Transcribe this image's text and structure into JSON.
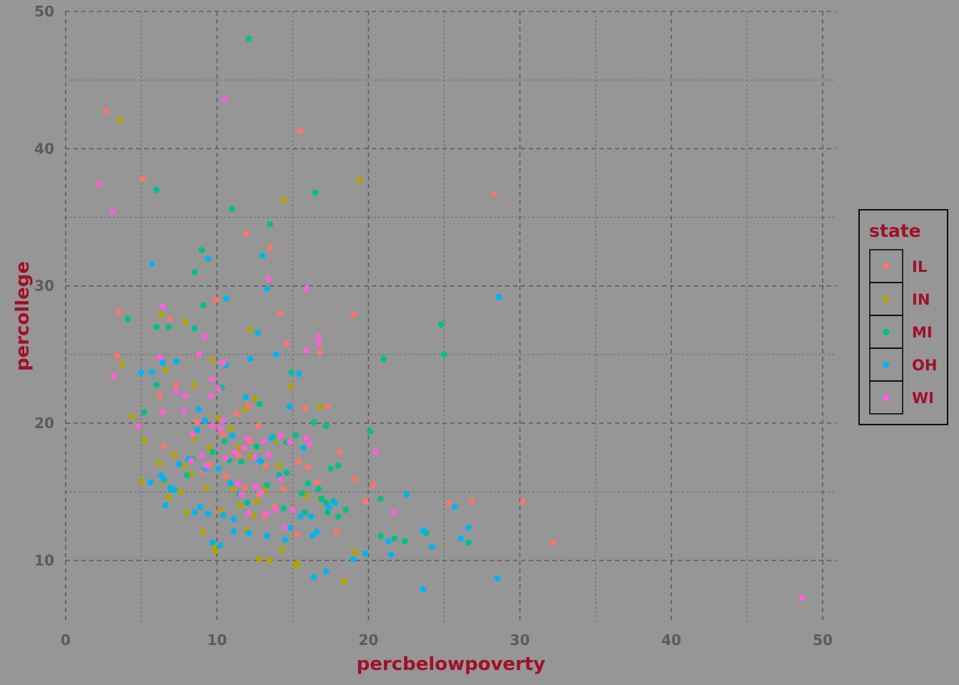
{
  "chart_data": {
    "type": "scatter",
    "xlabel": "percbelowpoverty",
    "ylabel": "percollege",
    "xlim": [
      0,
      50
    ],
    "ylim": [
      5.5,
      50
    ],
    "x_ticks": [
      0,
      10,
      20,
      30,
      40,
      50
    ],
    "y_ticks": [
      10,
      20,
      30,
      40,
      50
    ],
    "grid": true,
    "legend": {
      "title": "state",
      "position": "right"
    },
    "series": [
      {
        "name": "IL",
        "color": "#F8766D",
        "points": [
          [
            2.7,
            42.7
          ],
          [
            15.5,
            41.3
          ],
          [
            5.1,
            37.8
          ],
          [
            28.3,
            36.7
          ],
          [
            11.9,
            33.8
          ],
          [
            13.5,
            32.8
          ],
          [
            9.9,
            29.0
          ],
          [
            3.5,
            28.1
          ],
          [
            14.2,
            28.0
          ],
          [
            19.0,
            27.9
          ],
          [
            6.9,
            27.6
          ],
          [
            14.6,
            25.8
          ],
          [
            16.8,
            25.2
          ],
          [
            3.4,
            24.9
          ],
          [
            7.3,
            22.8
          ],
          [
            17.3,
            21.2
          ],
          [
            15.8,
            21.1
          ],
          [
            6.5,
            18.3
          ],
          [
            18.1,
            17.9
          ],
          [
            9.5,
            17.0
          ],
          [
            10.6,
            16.1
          ],
          [
            11.8,
            15.3
          ],
          [
            12.8,
            14.8
          ],
          [
            20.3,
            15.5
          ],
          [
            19.8,
            14.3
          ],
          [
            20.8,
            14.6
          ],
          [
            25.3,
            14.2
          ],
          [
            26.8,
            14.3
          ],
          [
            30.2,
            14.3
          ],
          [
            15.3,
            11.9
          ],
          [
            17.9,
            12.1
          ],
          [
            32.2,
            11.3
          ],
          [
            12.2,
            18.7
          ],
          [
            13.2,
            16.9
          ],
          [
            8.7,
            20.1
          ],
          [
            11.3,
            20.7
          ],
          [
            12.7,
            19.8
          ],
          [
            16.0,
            16.8
          ],
          [
            14.4,
            15.2
          ],
          [
            10.2,
            13.6
          ],
          [
            13.8,
            13.9
          ],
          [
            19.1,
            15.9
          ],
          [
            6.2,
            22.0
          ],
          [
            11.5,
            17.6
          ],
          [
            9.1,
            16.5
          ],
          [
            15.4,
            17.2
          ],
          [
            16.6,
            15.7
          ],
          [
            13.1,
            13.2
          ],
          [
            12.1,
            21.3
          ],
          [
            10.4,
            19.2
          ]
        ]
      },
      {
        "name": "IN",
        "color": "#B1A300",
        "points": [
          [
            3.6,
            42.1
          ],
          [
            19.4,
            37.7
          ],
          [
            14.4,
            36.3
          ],
          [
            6.3,
            27.9
          ],
          [
            7.9,
            27.4
          ],
          [
            12.2,
            26.8
          ],
          [
            9.7,
            24.6
          ],
          [
            6.6,
            23.9
          ],
          [
            3.7,
            24.3
          ],
          [
            4.4,
            20.5
          ],
          [
            8.5,
            22.8
          ],
          [
            12.5,
            21.8
          ],
          [
            16.8,
            21.2
          ],
          [
            14.9,
            22.7
          ],
          [
            5.2,
            18.7
          ],
          [
            6.2,
            17.1
          ],
          [
            5.0,
            15.8
          ],
          [
            6.5,
            15.7
          ],
          [
            7.8,
            16.9
          ],
          [
            8.3,
            16.3
          ],
          [
            6.8,
            14.6
          ],
          [
            8.0,
            13.5
          ],
          [
            9.1,
            12.1
          ],
          [
            9.8,
            11.1
          ],
          [
            9.9,
            10.7
          ],
          [
            10.3,
            13.6
          ],
          [
            11.5,
            14.0
          ],
          [
            12.4,
            13.3
          ],
          [
            13.5,
            10.0
          ],
          [
            12.8,
            10.1
          ],
          [
            14.3,
            10.8
          ],
          [
            15.2,
            9.6
          ],
          [
            15.3,
            9.8
          ],
          [
            18.4,
            8.5
          ],
          [
            19.1,
            10.6
          ],
          [
            13.2,
            15.2
          ],
          [
            14.1,
            16.9
          ],
          [
            15.9,
            14.7
          ],
          [
            16.8,
            14.5
          ],
          [
            10.9,
            19.6
          ],
          [
            11.8,
            21.0
          ],
          [
            9.5,
            18.2
          ],
          [
            7.6,
            15.0
          ],
          [
            11.0,
            15.2
          ],
          [
            12.2,
            17.6
          ],
          [
            13.8,
            18.8
          ],
          [
            8.5,
            18.9
          ],
          [
            10.1,
            20.4
          ],
          [
            12.6,
            14.3
          ],
          [
            9.3,
            15.3
          ],
          [
            11.4,
            18.2
          ],
          [
            12.0,
            12.2
          ],
          [
            7.2,
            17.7
          ]
        ]
      },
      {
        "name": "MI",
        "color": "#00C08B",
        "points": [
          [
            12.1,
            48.0
          ],
          [
            6.0,
            37.0
          ],
          [
            16.5,
            36.8
          ],
          [
            11.0,
            35.6
          ],
          [
            13.5,
            34.5
          ],
          [
            9.0,
            32.6
          ],
          [
            8.5,
            31.0
          ],
          [
            9.1,
            28.6
          ],
          [
            4.1,
            27.6
          ],
          [
            6.0,
            27.0
          ],
          [
            6.8,
            27.0
          ],
          [
            8.5,
            26.9
          ],
          [
            24.8,
            27.2
          ],
          [
            25.0,
            25.0
          ],
          [
            21.0,
            24.7
          ],
          [
            6.0,
            22.8
          ],
          [
            10.3,
            22.6
          ],
          [
            14.9,
            23.7
          ],
          [
            5.2,
            20.8
          ],
          [
            20.1,
            19.4
          ],
          [
            12.8,
            21.4
          ],
          [
            17.2,
            19.8
          ],
          [
            16.4,
            20.1
          ],
          [
            13.7,
            19.0
          ],
          [
            14.6,
            18.6
          ],
          [
            15.2,
            19.1
          ],
          [
            11.6,
            17.2
          ],
          [
            9.7,
            17.9
          ],
          [
            8.0,
            16.2
          ],
          [
            10.8,
            17.3
          ],
          [
            13.3,
            15.5
          ],
          [
            14.1,
            16.2
          ],
          [
            14.6,
            16.4
          ],
          [
            16.0,
            15.6
          ],
          [
            15.6,
            14.9
          ],
          [
            17.5,
            16.7
          ],
          [
            18.0,
            16.9
          ],
          [
            17.2,
            14.2
          ],
          [
            16.9,
            14.5
          ],
          [
            17.7,
            14.3
          ],
          [
            18.5,
            13.7
          ],
          [
            18.0,
            13.2
          ],
          [
            17.3,
            13.5
          ],
          [
            20.8,
            14.5
          ],
          [
            20.8,
            11.8
          ],
          [
            21.7,
            11.6
          ],
          [
            22.4,
            11.4
          ],
          [
            23.8,
            12.0
          ],
          [
            26.6,
            11.3
          ],
          [
            11.5,
            14.8
          ],
          [
            12.0,
            14.2
          ],
          [
            14.4,
            13.8
          ],
          [
            7.0,
            15.2
          ],
          [
            8.4,
            17.4
          ],
          [
            10.5,
            18.7
          ],
          [
            12.6,
            18.3
          ],
          [
            15.8,
            13.5
          ],
          [
            16.7,
            15.2
          ]
        ]
      },
      {
        "name": "OH",
        "color": "#00B5EF",
        "points": [
          [
            5.7,
            31.6
          ],
          [
            9.4,
            32.0
          ],
          [
            13.0,
            32.2
          ],
          [
            10.6,
            29.1
          ],
          [
            13.3,
            29.8
          ],
          [
            28.6,
            29.2
          ],
          [
            12.7,
            26.6
          ],
          [
            13.9,
            25.0
          ],
          [
            12.2,
            24.7
          ],
          [
            5.0,
            23.7
          ],
          [
            5.7,
            23.7
          ],
          [
            7.3,
            24.5
          ],
          [
            10.6,
            24.2
          ],
          [
            15.4,
            23.6
          ],
          [
            6.4,
            24.4
          ],
          [
            9.2,
            20.2
          ],
          [
            8.8,
            21.0
          ],
          [
            11.9,
            21.9
          ],
          [
            14.8,
            21.2
          ],
          [
            6.3,
            16.2
          ],
          [
            7.5,
            17.0
          ],
          [
            8.1,
            17.4
          ],
          [
            5.6,
            15.7
          ],
          [
            6.5,
            15.9
          ],
          [
            6.9,
            15.3
          ],
          [
            7.2,
            15.1
          ],
          [
            6.6,
            14.0
          ],
          [
            8.5,
            13.5
          ],
          [
            8.9,
            13.9
          ],
          [
            9.4,
            13.4
          ],
          [
            9.2,
            16.7
          ],
          [
            10.1,
            16.7
          ],
          [
            10.4,
            13.3
          ],
          [
            11.1,
            13.0
          ],
          [
            11.1,
            12.1
          ],
          [
            9.7,
            11.3
          ],
          [
            10.2,
            11.1
          ],
          [
            12.1,
            12.0
          ],
          [
            13.3,
            11.8
          ],
          [
            14.5,
            11.5
          ],
          [
            14.8,
            12.4
          ],
          [
            15.5,
            13.2
          ],
          [
            16.2,
            13.2
          ],
          [
            16.3,
            11.8
          ],
          [
            16.6,
            12.1
          ],
          [
            17.4,
            13.9
          ],
          [
            17.8,
            14.2
          ],
          [
            19.8,
            10.5
          ],
          [
            19.0,
            10.1
          ],
          [
            21.3,
            11.4
          ],
          [
            21.5,
            10.4
          ],
          [
            22.5,
            14.8
          ],
          [
            23.6,
            12.2
          ],
          [
            24.2,
            11.0
          ],
          [
            25.7,
            13.9
          ],
          [
            26.1,
            11.6
          ],
          [
            26.6,
            12.4
          ],
          [
            28.5,
            8.7
          ],
          [
            23.6,
            7.9
          ],
          [
            16.4,
            8.8
          ],
          [
            17.2,
            9.2
          ],
          [
            8.7,
            19.5
          ],
          [
            11.0,
            19.1
          ],
          [
            12.6,
            17.4
          ],
          [
            13.6,
            18.9
          ],
          [
            15.7,
            18.2
          ],
          [
            12.9,
            17.2
          ],
          [
            10.9,
            15.6
          ]
        ]
      },
      {
        "name": "WI",
        "color": "#FB61D7",
        "points": [
          [
            2.2,
            37.4
          ],
          [
            3.1,
            35.4
          ],
          [
            10.5,
            43.6
          ],
          [
            13.4,
            30.5
          ],
          [
            15.9,
            29.8
          ],
          [
            6.4,
            28.5
          ],
          [
            9.2,
            26.3
          ],
          [
            16.7,
            26.3
          ],
          [
            16.7,
            25.8
          ],
          [
            15.9,
            25.3
          ],
          [
            6.2,
            24.8
          ],
          [
            8.8,
            25.0
          ],
          [
            10.4,
            24.4
          ],
          [
            3.2,
            23.4
          ],
          [
            9.7,
            23.2
          ],
          [
            10.1,
            22.5
          ],
          [
            9.6,
            22.0
          ],
          [
            7.3,
            22.3
          ],
          [
            7.9,
            22.0
          ],
          [
            4.8,
            19.8
          ],
          [
            6.4,
            20.8
          ],
          [
            7.8,
            20.9
          ],
          [
            8.4,
            19.2
          ],
          [
            9.7,
            19.8
          ],
          [
            10.4,
            20.2
          ],
          [
            8.3,
            17.3
          ],
          [
            9.3,
            16.9
          ],
          [
            10.6,
            17.5
          ],
          [
            11.8,
            18.2
          ],
          [
            12.5,
            17.5
          ],
          [
            13.4,
            17.7
          ],
          [
            14.2,
            19.1
          ],
          [
            14.8,
            18.6
          ],
          [
            15.9,
            18.9
          ],
          [
            16.1,
            18.5
          ],
          [
            20.5,
            17.9
          ],
          [
            11.4,
            15.6
          ],
          [
            12.5,
            15.4
          ],
          [
            12.9,
            15.0
          ],
          [
            14.2,
            15.9
          ],
          [
            15.0,
            13.7
          ],
          [
            12.1,
            13.4
          ],
          [
            11.6,
            14.8
          ],
          [
            13.3,
            13.4
          ],
          [
            13.9,
            13.7
          ],
          [
            14.5,
            12.4
          ],
          [
            21.7,
            13.5
          ],
          [
            48.6,
            7.3
          ],
          [
            12.0,
            18.9
          ],
          [
            13.1,
            18.7
          ],
          [
            10.2,
            19.6
          ],
          [
            9.0,
            17.6
          ],
          [
            11.2,
            17.9
          ]
        ]
      }
    ]
  }
}
